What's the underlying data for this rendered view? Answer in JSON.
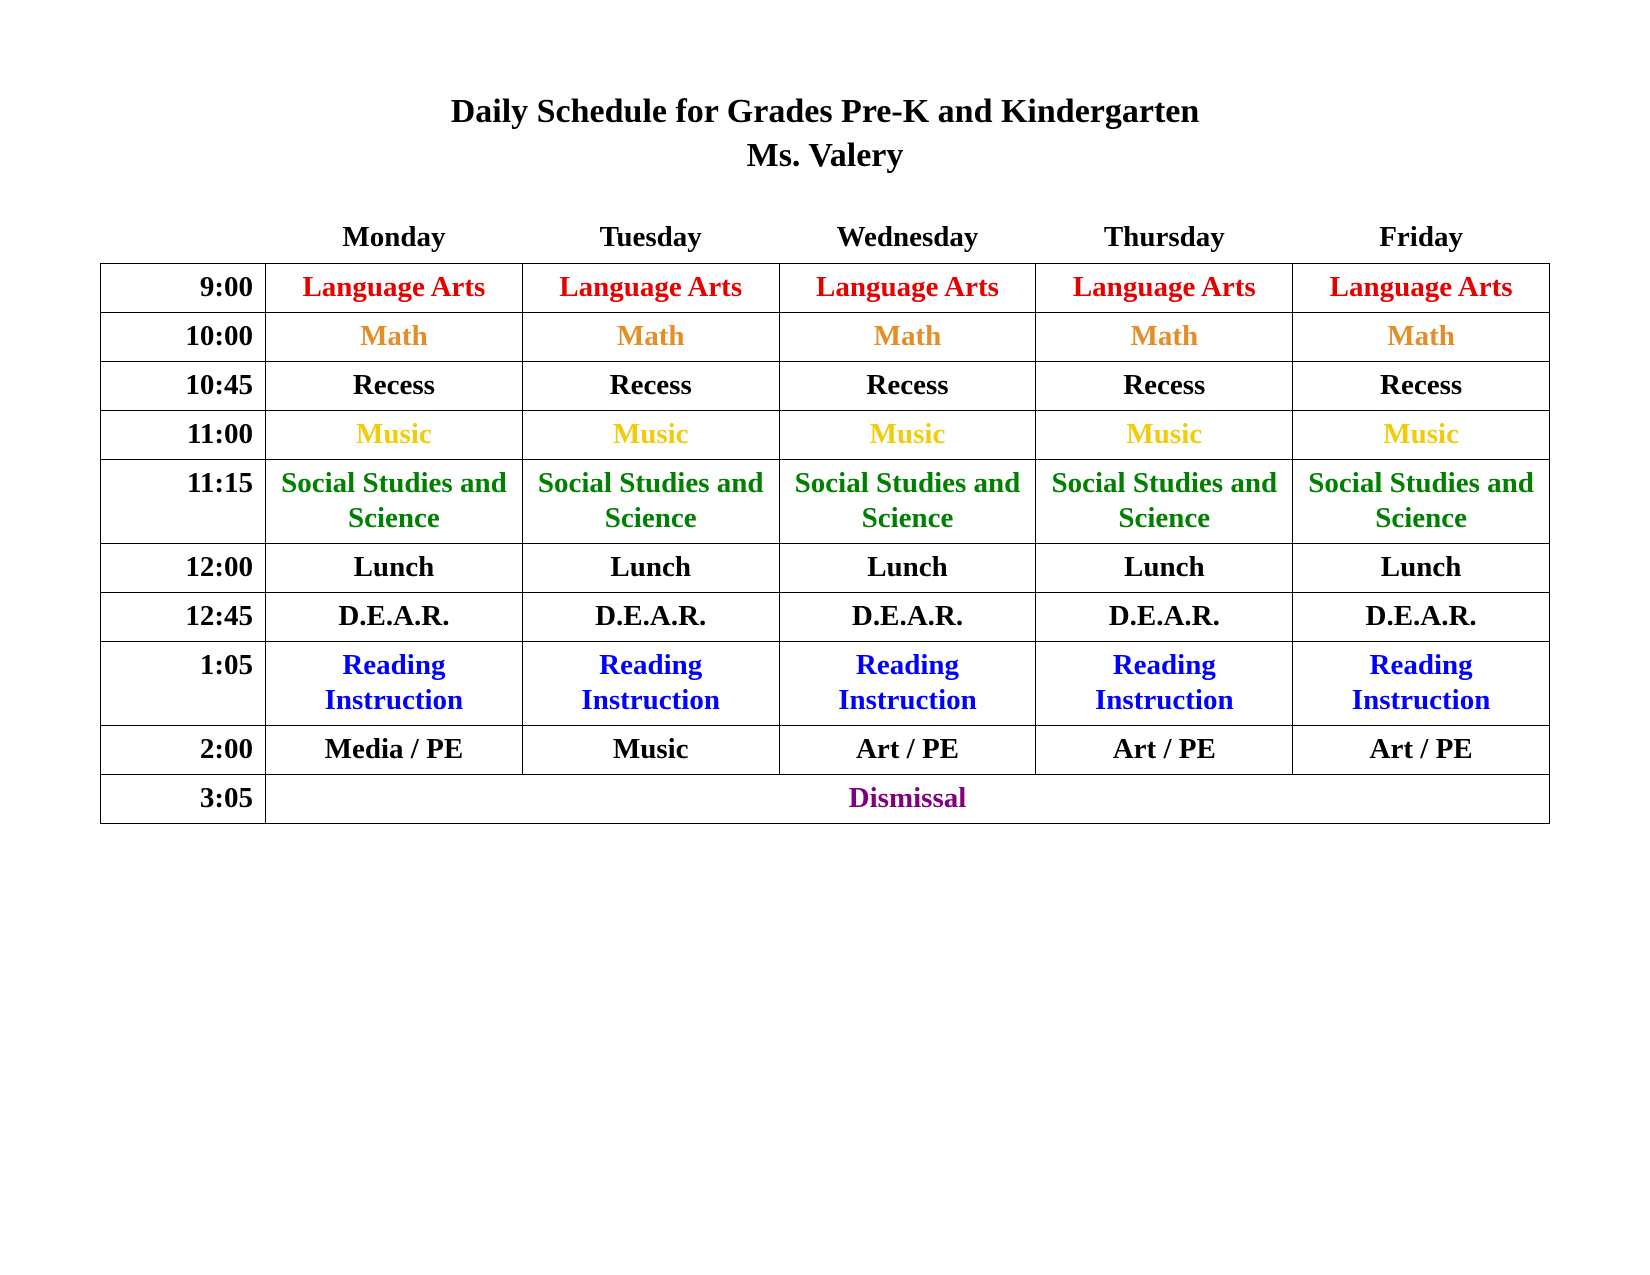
{
  "title_line1": "Daily Schedule for Grades Pre-K and Kindergarten",
  "title_line2": "Ms. Valery",
  "colors": {
    "language_arts": "#e60000",
    "math": "#e38e27",
    "recess": "#000000",
    "music": "#f2cc0c",
    "social": "#008000",
    "lunch": "#000000",
    "dear": "#000000",
    "reading": "#0000ff",
    "specials": "#000000",
    "dismissal": "#800080",
    "header": "#000000",
    "time": "#000000"
  },
  "day_headers": [
    "Monday",
    "Tuesday",
    "Wednesday",
    "Thursday",
    "Friday"
  ],
  "rows": [
    {
      "time": "9:00",
      "color_key": "language_arts",
      "cells": [
        "Language Arts",
        "Language Arts",
        "Language Arts",
        "Language Arts",
        "Language Arts"
      ]
    },
    {
      "time": "10:00",
      "color_key": "math",
      "cells": [
        "Math",
        "Math",
        "Math",
        "Math",
        "Math"
      ]
    },
    {
      "time": "10:45",
      "color_key": "recess",
      "cells": [
        "Recess",
        "Recess",
        "Recess",
        "Recess",
        "Recess"
      ]
    },
    {
      "time": "11:00",
      "color_key": "music",
      "cells": [
        "Music",
        "Music",
        "Music",
        "Music",
        "Music"
      ]
    },
    {
      "time": "11:15",
      "color_key": "social",
      "cells": [
        "Social Studies and Science",
        "Social Studies and Science",
        "Social Studies and Science",
        "Social Studies and Science",
        "Social Studies and Science"
      ]
    },
    {
      "time": "12:00",
      "color_key": "lunch",
      "cells": [
        "Lunch",
        "Lunch",
        "Lunch",
        "Lunch",
        "Lunch"
      ]
    },
    {
      "time": "12:45",
      "color_key": "dear",
      "cells": [
        "D.E.A.R.",
        "D.E.A.R.",
        "D.E.A.R.",
        "D.E.A.R.",
        "D.E.A.R."
      ]
    },
    {
      "time": "1:05",
      "color_key": "reading",
      "cells": [
        "Reading Instruction",
        "Reading Instruction",
        "Reading Instruction",
        "Reading Instruction",
        "Reading Instruction"
      ]
    },
    {
      "time": "2:00",
      "color_key": "specials",
      "cells": [
        "Media / PE",
        "Music",
        "Art / PE",
        "Art / PE",
        "Art / PE"
      ]
    }
  ],
  "dismissal_row": {
    "time": "3:05",
    "label": "Dismissal",
    "color_key": "dismissal"
  }
}
